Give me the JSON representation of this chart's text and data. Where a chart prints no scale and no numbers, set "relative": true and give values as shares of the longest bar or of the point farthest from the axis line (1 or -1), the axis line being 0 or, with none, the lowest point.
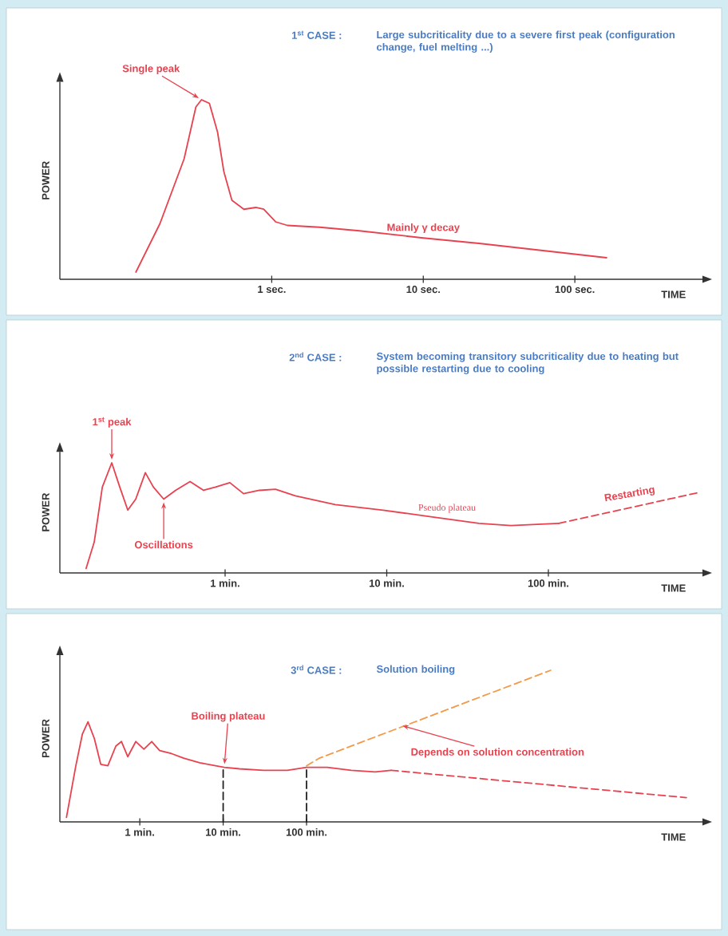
{
  "chart_data": [
    {
      "type": "line",
      "title": "1$^{st}$ CASE :",
      "subtitle": "Large subcriticality due to a severe first peak (configuration change, fuel melting ...)",
      "xlabel": "TIME",
      "ylabel": "POWER",
      "relative": true,
      "log": "x",
      "xlim": [
        0.04,
        695
      ],
      "xticks": [
        {
          "value": 1,
          "label": "1 sec."
        },
        {
          "value": 10,
          "label": "10 sec."
        },
        {
          "value": 100,
          "label": "100 sec."
        }
      ],
      "series": [
        {
          "color": "#e8424f",
          "x": [
            0.127,
            0.183,
            0.264,
            0.316,
            0.344,
            0.388,
            0.439,
            0.483,
            0.546,
            0.655,
            0.785,
            0.885,
            1.06,
            1.27,
            2.07,
            3.79,
            10,
            23.3,
            61.5,
            162
          ],
          "values": [
            0.04,
            0.31,
            0.67,
            0.96,
            1.0,
            0.98,
            0.82,
            0.6,
            0.44,
            0.39,
            0.4,
            0.39,
            0.32,
            0.3,
            0.29,
            0.27,
            0.23,
            0.2,
            0.16,
            0.12
          ]
        }
      ],
      "annotations": [
        {
          "text": "Single peak",
          "x": 0.344,
          "y": 1.0
        },
        {
          "text": "Mainly γ decay",
          "x": 10,
          "y": 0.23
        }
      ]
    },
    {
      "type": "line",
      "title": "2$^{nd}$ CASE :",
      "subtitle": "System becoming transitory subcriticality due to heating but possible restarting due to cooling",
      "xlabel": "TIME",
      "ylabel": "POWER",
      "relative": true,
      "log": "x",
      "xlim": [
        0.095,
        898
      ],
      "xticks": [
        {
          "value": 1,
          "label": "1 min."
        },
        {
          "value": 10,
          "label": "10 min."
        },
        {
          "value": 100,
          "label": "100 min."
        }
      ],
      "series": [
        {
          "color": "#e8424f",
          "x": [
            0.138,
            0.155,
            0.174,
            0.199,
            0.223,
            0.25,
            0.28,
            0.321,
            0.36,
            0.417,
            0.494,
            0.607,
            0.736,
            0.873,
            1.07,
            1.3,
            1.63,
            2.05,
            2.72,
            4.8,
            9.5,
            18.8,
            37.2,
            58.6,
            116
          ],
          "values": [
            0.04,
            0.28,
            0.78,
            1.0,
            0.78,
            0.57,
            0.67,
            0.91,
            0.78,
            0.67,
            0.75,
            0.83,
            0.75,
            0.78,
            0.82,
            0.72,
            0.75,
            0.76,
            0.7,
            0.62,
            0.57,
            0.51,
            0.45,
            0.43,
            0.45
          ]
        },
        {
          "color": "#e8424f",
          "line_style": "dashed",
          "x": [
            116,
            850
          ],
          "values": [
            0.45,
            0.73
          ]
        }
      ],
      "annotations": [
        {
          "text": "1$^{st}$ peak",
          "x": 0.199,
          "y": 1.0
        },
        {
          "text": "Oscillations",
          "x": 0.417,
          "y": 0.67
        },
        {
          "text": "Pseudo plateau",
          "x": 18.8,
          "y": 0.51
        },
        {
          "text": "Restarting",
          "x": 363,
          "y": 0.61
        }
      ]
    },
    {
      "type": "line",
      "title": "3$^{rd}$ CASE :",
      "subtitle": "Solution boiling",
      "xlabel": "TIME",
      "ylabel": "POWER",
      "relative": true,
      "log": "x",
      "xlim": [
        0.11,
        5600000
      ],
      "xticks": [
        {
          "value": 1,
          "label": "1 min."
        },
        {
          "value": 10,
          "label": "10 min."
        },
        {
          "value": 100,
          "label": "100 min."
        }
      ],
      "series": [
        {
          "color": "#e8424f",
          "x": [
            0.132,
            0.171,
            0.205,
            0.239,
            0.285,
            0.34,
            0.414,
            0.516,
            0.603,
            0.718,
            0.896,
            1.12,
            1.39,
            1.73,
            2.41,
            3.36,
            5.22,
            8.11,
            10.3,
            15.7,
            30.4,
            58.9,
            100,
            177,
            344,
            665,
            1033
          ],
          "values": [
            0.03,
            0.37,
            0.58,
            0.66,
            0.55,
            0.38,
            0.37,
            0.5,
            0.53,
            0.43,
            0.53,
            0.48,
            0.53,
            0.47,
            0.45,
            0.42,
            0.39,
            0.37,
            0.36,
            0.35,
            0.34,
            0.34,
            0.36,
            0.36,
            0.34,
            0.33,
            0.34
          ]
        },
        {
          "color": "#e8424f",
          "line_style": "dashed",
          "x": [
            1033,
            3590000
          ],
          "values": [
            0.34,
            0.16
          ]
        },
        {
          "color": "#f39a4a",
          "line_style": "dashed",
          "x": [
            100,
            142,
            84700
          ],
          "values": [
            0.37,
            0.42,
            1.0
          ]
        },
        {
          "color": "#222222",
          "line_style": "dashed",
          "x": [
            10,
            10
          ],
          "values": [
            0,
            0.36
          ]
        },
        {
          "color": "#222222",
          "line_style": "dashed",
          "x": [
            100,
            100
          ],
          "values": [
            0,
            0.36
          ]
        }
      ],
      "annotations": [
        {
          "text": "Boiling plateau",
          "x": 10.3,
          "y": 0.36
        },
        {
          "text": "Depends on solution concentration",
          "x": 1300,
          "y": 0.64
        }
      ]
    }
  ]
}
